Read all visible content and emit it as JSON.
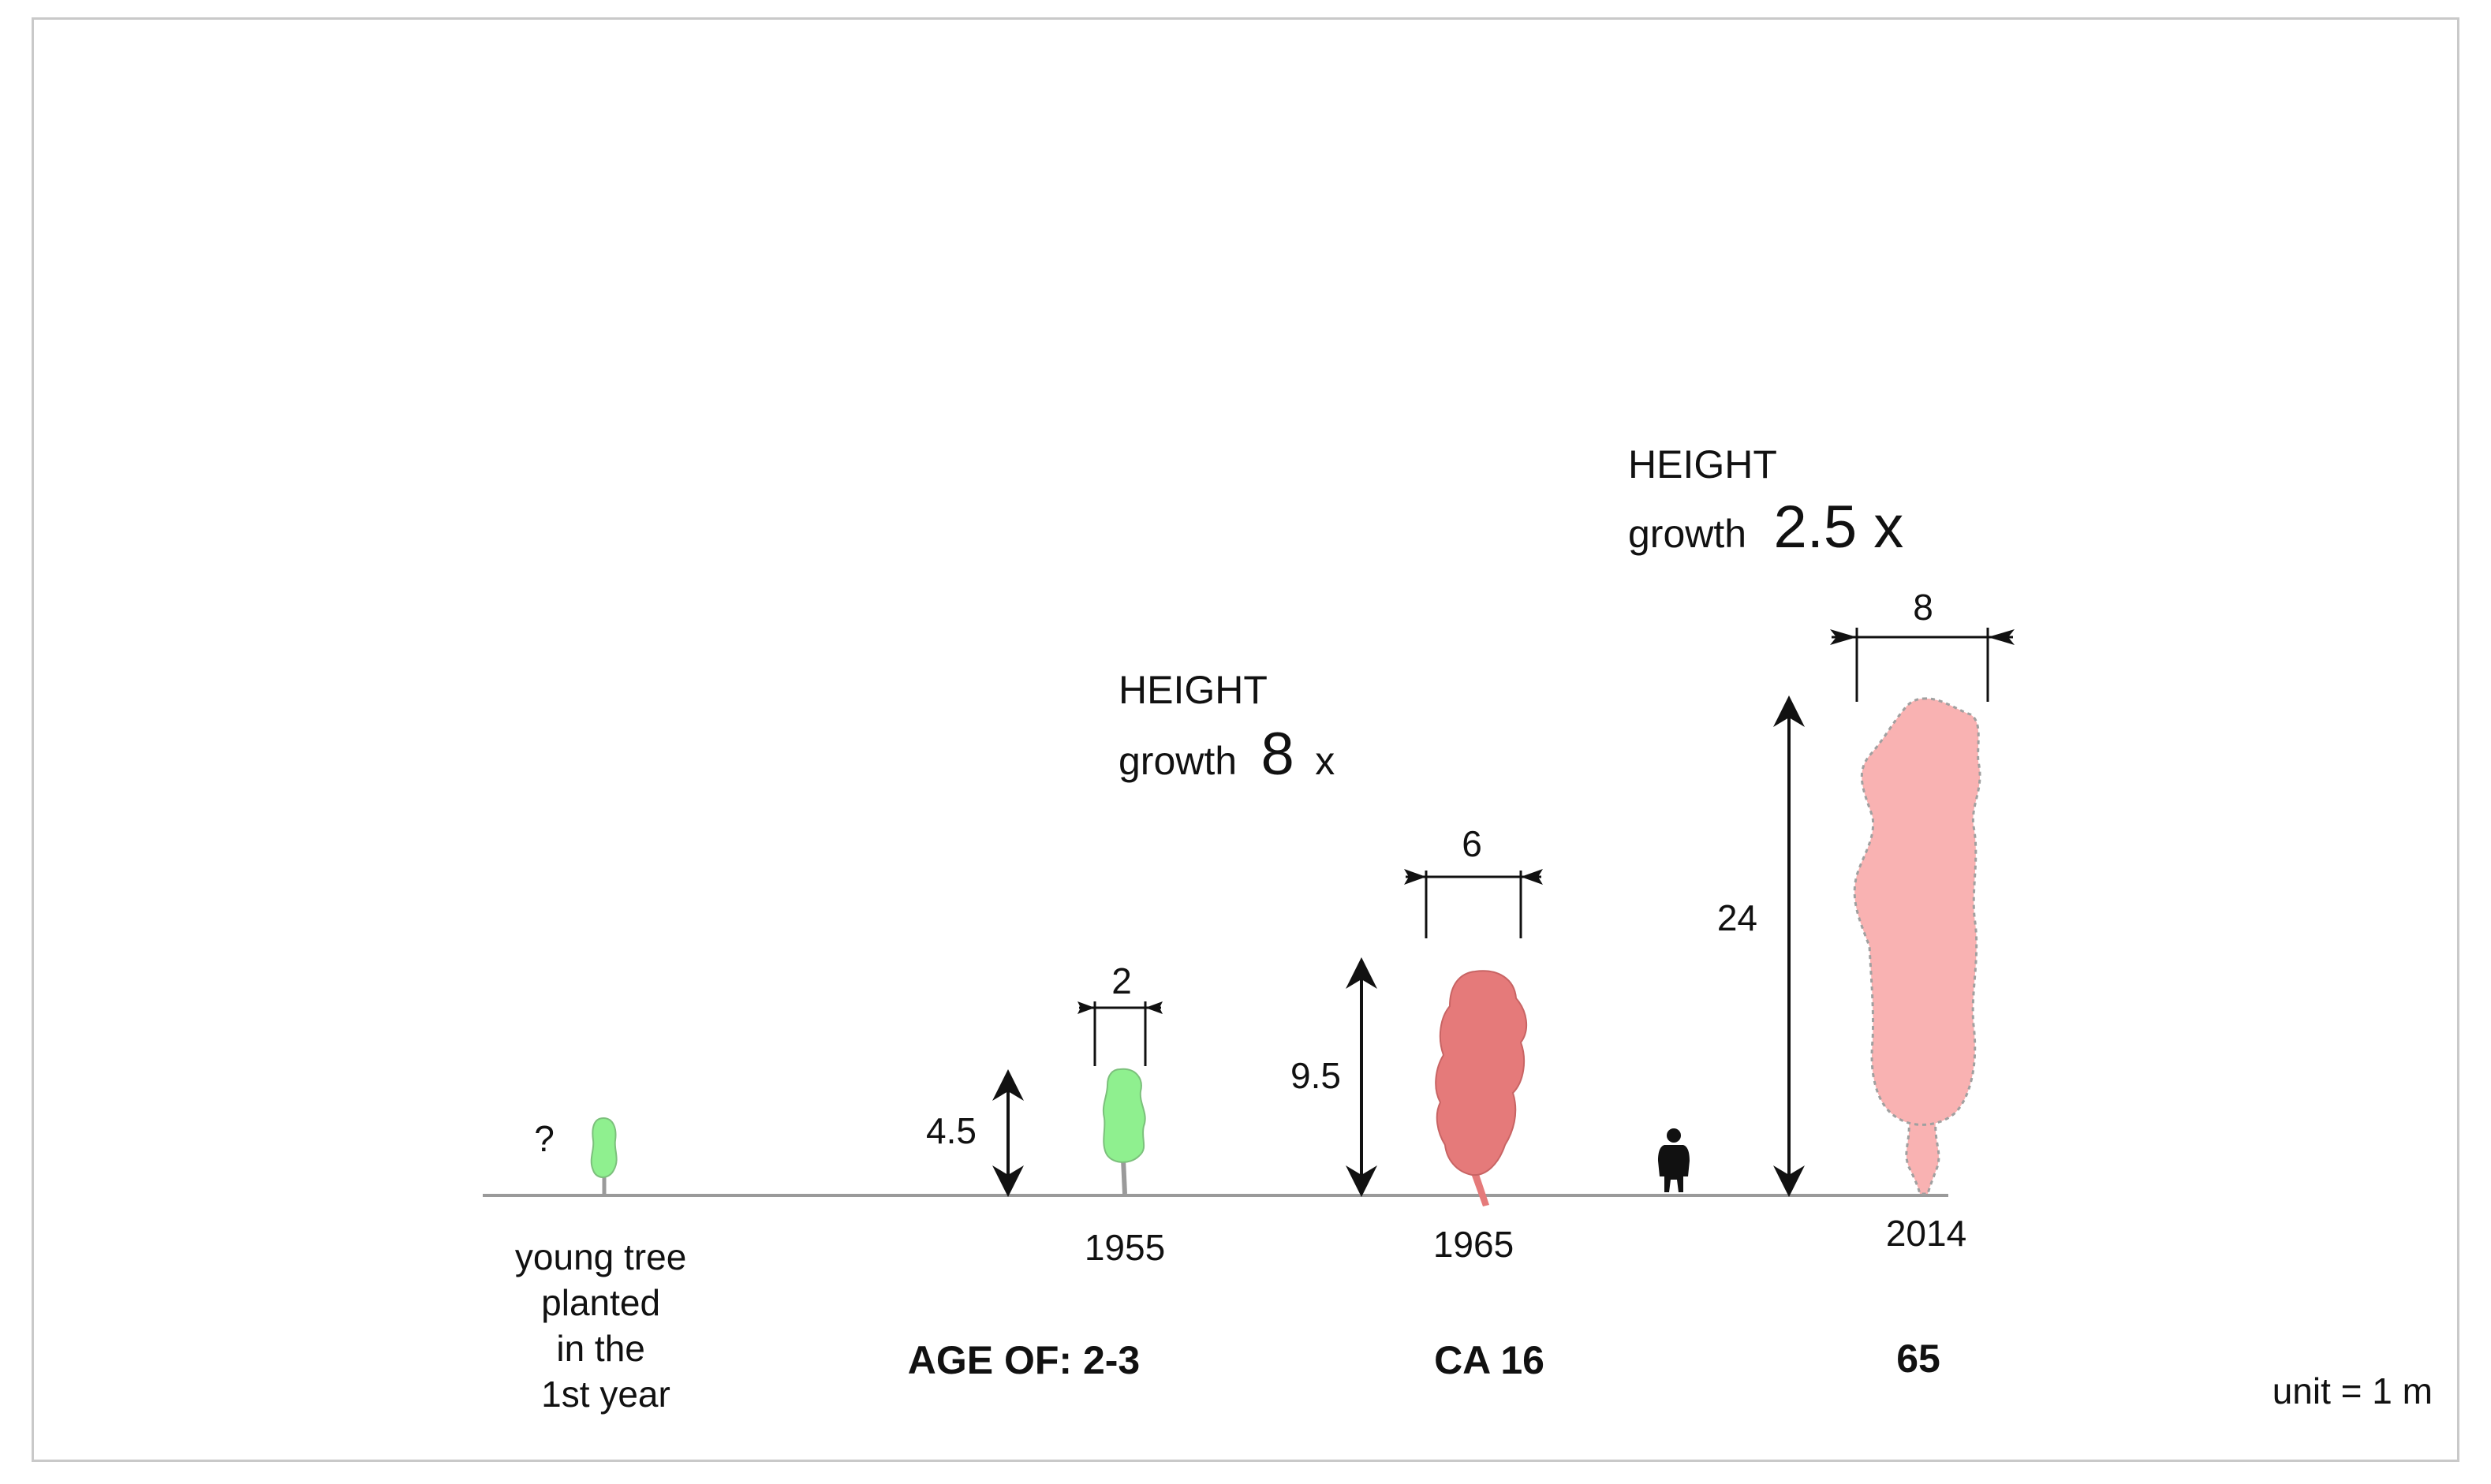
{
  "unit_note": "unit = 1 m",
  "age_prefix": "AGE OF: 2-3",
  "stages": [
    {
      "year": "",
      "height_label": "?",
      "width_label": "",
      "caption_lines": [
        "young tree",
        "planted",
        "in the",
        "1st year"
      ],
      "age": "",
      "crown_color": "#8ff08f",
      "height_m": null,
      "crown_width_m": null
    },
    {
      "year": "1955",
      "height_label": "4.5",
      "width_label": "2",
      "caption_lines": [],
      "age": "AGE OF: 2-3",
      "crown_color": "#8ff08f",
      "height_m": 4.5,
      "crown_width_m": 2
    },
    {
      "year": "1965",
      "height_label": "9.5",
      "width_label": "6",
      "caption_lines": [],
      "age": "CA 16",
      "crown_color": "#e57a7a",
      "height_m": 9.5,
      "crown_width_m": 6
    },
    {
      "year": "2014",
      "height_label": "24",
      "width_label": "8",
      "caption_lines": [],
      "age": "65",
      "crown_color": "#f9b2b2",
      "height_m": 24,
      "crown_width_m": 8
    }
  ],
  "growth_notes": [
    {
      "title": "HEIGHT",
      "word": "growth",
      "factor": "8",
      "suffix": "x"
    },
    {
      "title": "HEIGHT",
      "word": "growth",
      "factor": "2.5 x",
      "suffix": ""
    }
  ],
  "icons": {
    "person": "person-silhouette-icon"
  },
  "colors": {
    "young": "#8ff08f",
    "mid": "#e57a7a",
    "old": "#f9b2b2",
    "ground": "#9a9a9a"
  }
}
